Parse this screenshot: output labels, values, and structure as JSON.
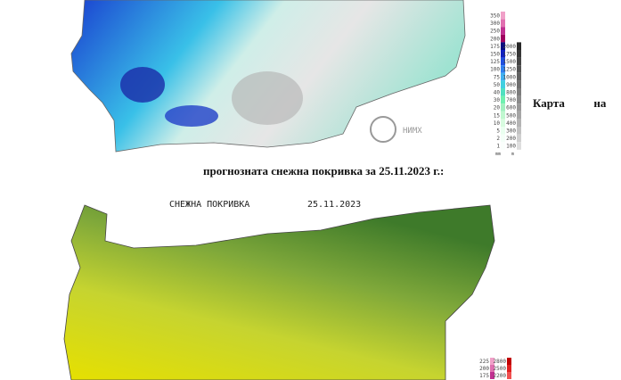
{
  "top_map": {
    "logo": "НИМХ",
    "legend_left": [
      "350",
      "300",
      "250",
      "200",
      "175",
      "150",
      "125",
      "100",
      "75",
      "50",
      "40",
      "30",
      "20",
      "15",
      "10",
      "5",
      "2",
      "1"
    ],
    "legend_right": [
      "2000",
      "1750",
      "1500",
      "1250",
      "1000",
      "900",
      "800",
      "700",
      "600",
      "500",
      "400",
      "300",
      "200",
      "100"
    ],
    "unit_left": "mm",
    "unit_right": "m"
  },
  "caption": {
    "line1": "Карта          на",
    "line2": "прогнозната снежна покривка за 25.11.2023 г.:"
  },
  "bottom_map": {
    "title": "СНЕЖНА ПОКРИВКА",
    "date": "25.11.2023",
    "legend_left": [
      "225",
      "200",
      "175"
    ],
    "legend_right": [
      "2800",
      "2500",
      "2200"
    ]
  }
}
